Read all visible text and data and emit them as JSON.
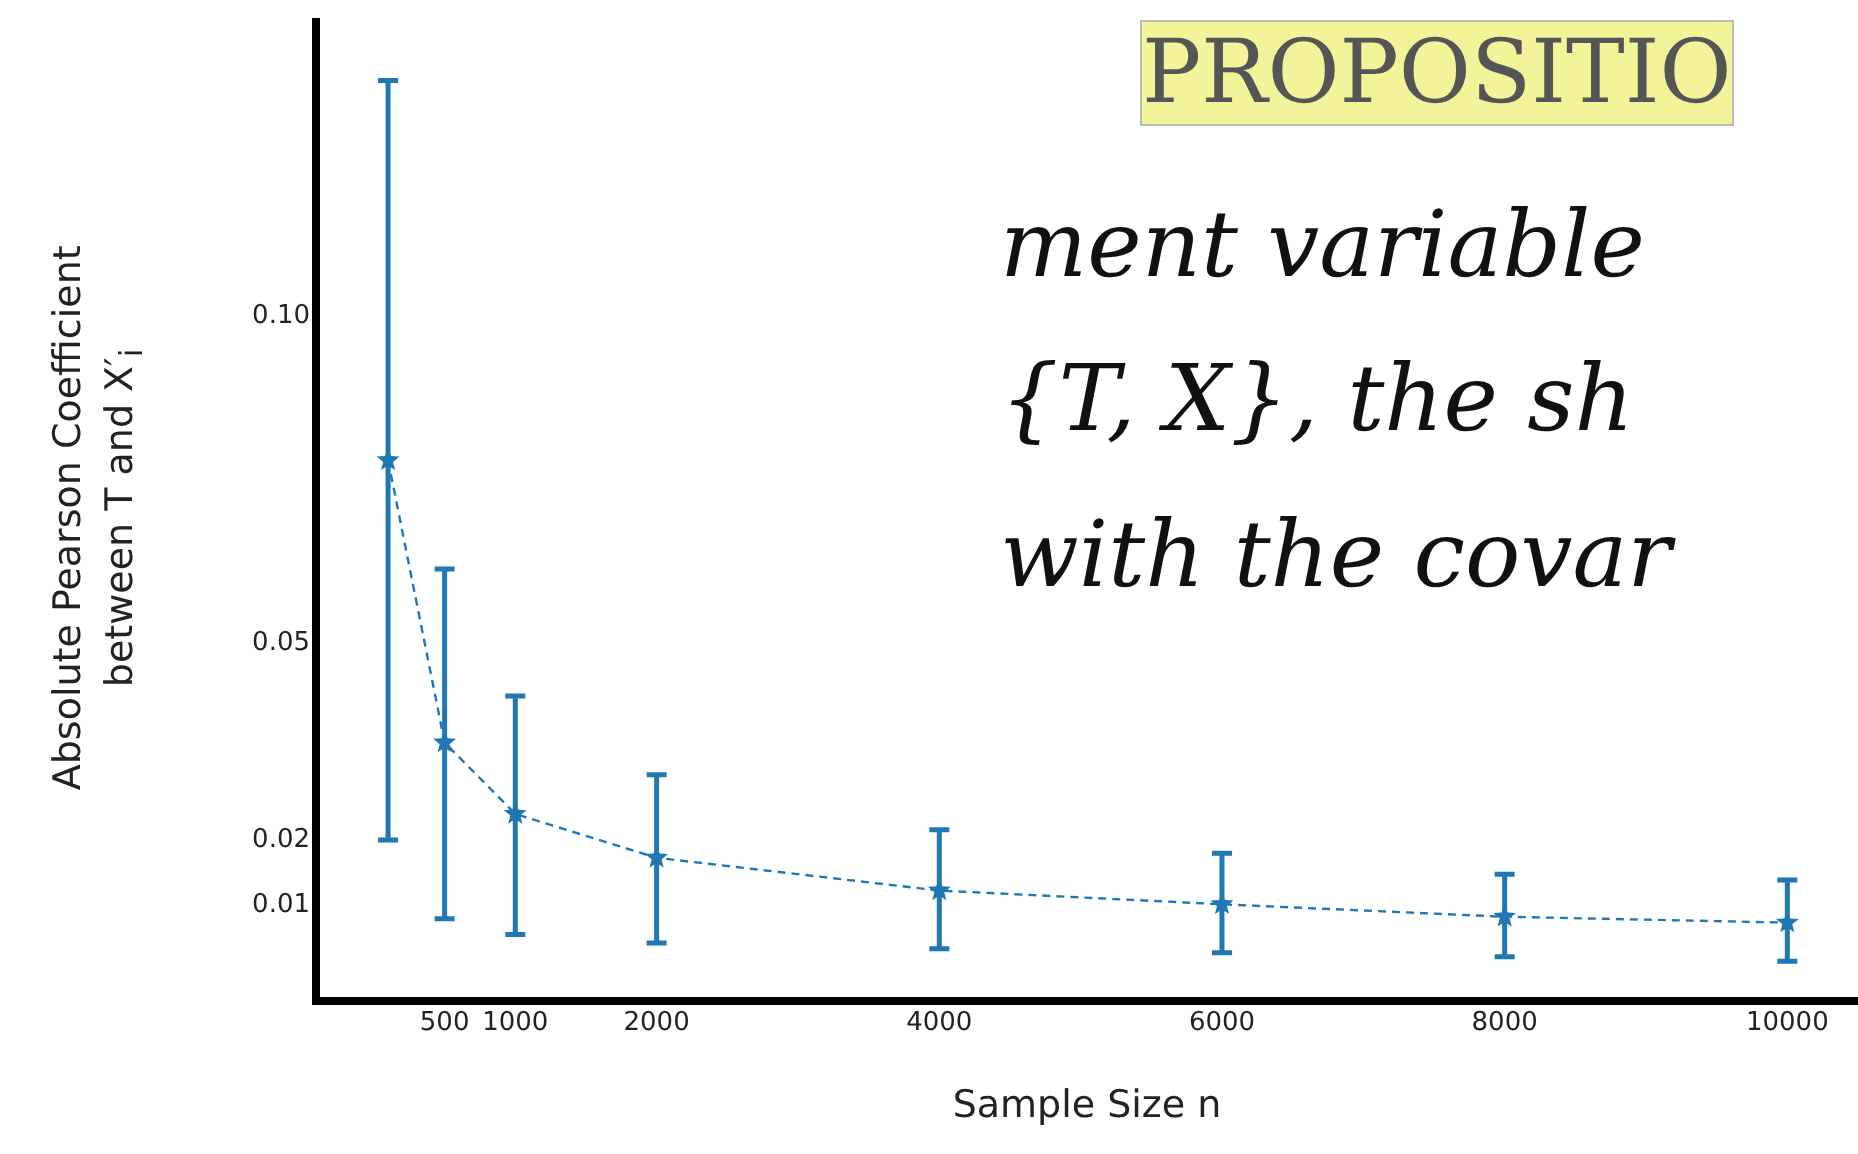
{
  "chart_data": {
    "type": "line",
    "xlabel": "Sample Size n",
    "ylabel": "Absolute Pearson Coefficient\nbetween T and X′$_{i}$",
    "x": [
      100,
      500,
      1000,
      2000,
      4000,
      6000,
      8000,
      10000
    ],
    "series": [
      {
        "color": "#1f77b4",
        "values": [
          0.078,
          0.0349,
          0.024,
          0.0173,
          0.0123,
          0.0102,
          0.0083,
          0.0074
        ],
        "errors": [
          [
            0.02,
            0.136
          ],
          [
            0.008,
            0.0614
          ],
          [
            0.0056,
            0.042
          ],
          [
            0.0043,
            0.03
          ],
          [
            0.0034,
            0.0216
          ],
          [
            0.0028,
            0.018
          ],
          [
            0.0022,
            0.0148
          ],
          [
            0.0015,
            0.0139
          ]
        ]
      }
    ],
    "xlim": [
      -410,
      10500
    ],
    "ylim": [
      -0.0046,
      0.145
    ],
    "xticks": [
      500,
      1000,
      2000,
      4000,
      6000,
      8000,
      10000
    ],
    "yticks": [
      {
        "value": 0.01,
        "label": "0.01"
      },
      {
        "value": 0.02,
        "label": "0.02"
      },
      {
        "value": 0.05,
        "label": "0.05"
      },
      {
        "value": 0.1,
        "label": "0.10"
      }
    ],
    "grid": false,
    "legend": false,
    "marker": "star",
    "line_style": "dashed",
    "annotations": [
      "PROPOSITIO",
      "ment variable",
      "{T, X}, the sh",
      "with the covar"
    ]
  }
}
